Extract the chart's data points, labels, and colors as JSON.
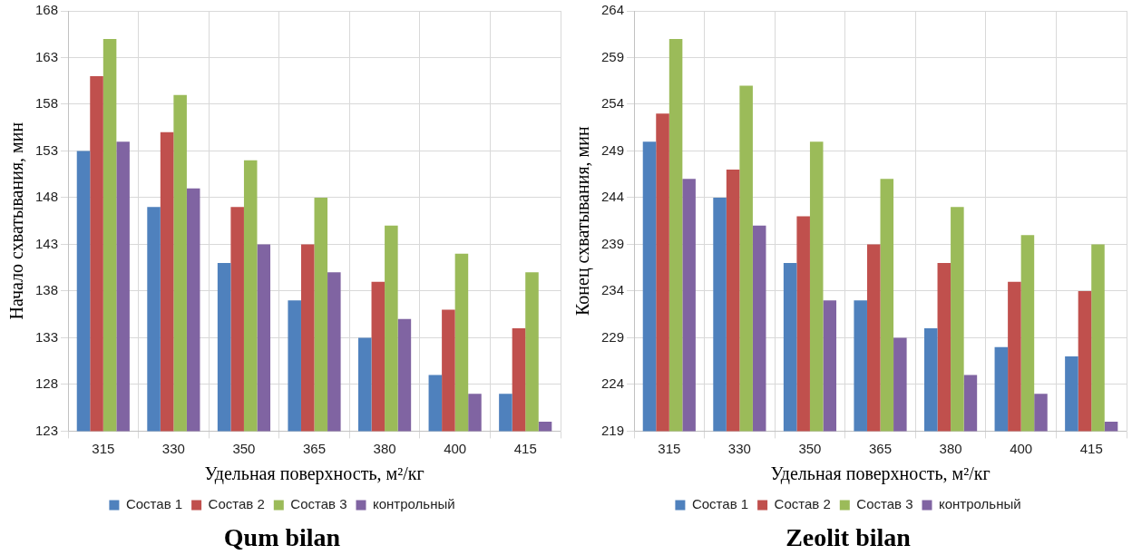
{
  "chart_data": [
    {
      "type": "bar",
      "title": "Qum bilan",
      "xlabel": "Удельная поверхность, м²/кг",
      "ylabel": "Начало схватывания, мин",
      "categories": [
        "315",
        "330",
        "350",
        "365",
        "380",
        "400",
        "415"
      ],
      "ylim": [
        123,
        168
      ],
      "yticks": [
        123,
        128,
        133,
        138,
        143,
        148,
        153,
        158,
        163,
        168
      ],
      "grid": true,
      "legend": "bottom",
      "series": [
        {
          "name": "Состав 1",
          "color": "#4f81bd",
          "values": [
            153,
            147,
            141,
            137,
            133,
            129,
            127
          ]
        },
        {
          "name": "Состав 2",
          "color": "#c0504d",
          "values": [
            161,
            155,
            147,
            143,
            139,
            136,
            134
          ]
        },
        {
          "name": "Состав 3",
          "color": "#9bbb59",
          "values": [
            165,
            159,
            152,
            148,
            145,
            142,
            140
          ]
        },
        {
          "name": "контрольный",
          "color": "#8064a2",
          "values": [
            154,
            149,
            143,
            140,
            135,
            127,
            124
          ]
        }
      ]
    },
    {
      "type": "bar",
      "title": "Zeolit bilan",
      "xlabel": "Удельная поверхность, м²/кг",
      "ylabel": "Конец схватывания, мин",
      "categories": [
        "315",
        "330",
        "350",
        "365",
        "380",
        "400",
        "415"
      ],
      "ylim": [
        219,
        264
      ],
      "yticks": [
        219,
        224,
        229,
        234,
        239,
        244,
        249,
        254,
        259,
        264
      ],
      "grid": true,
      "legend": "bottom",
      "series": [
        {
          "name": "Состав 1",
          "color": "#4f81bd",
          "values": [
            250,
            244,
            237,
            233,
            230,
            228,
            227
          ]
        },
        {
          "name": "Состав 2",
          "color": "#c0504d",
          "values": [
            253,
            247,
            242,
            239,
            237,
            235,
            234
          ]
        },
        {
          "name": "Состав 3",
          "color": "#9bbb59",
          "values": [
            261,
            256,
            250,
            246,
            243,
            240,
            239
          ]
        },
        {
          "name": "контрольный",
          "color": "#8064a2",
          "values": [
            246,
            241,
            233,
            229,
            225,
            223,
            220
          ]
        }
      ]
    }
  ]
}
